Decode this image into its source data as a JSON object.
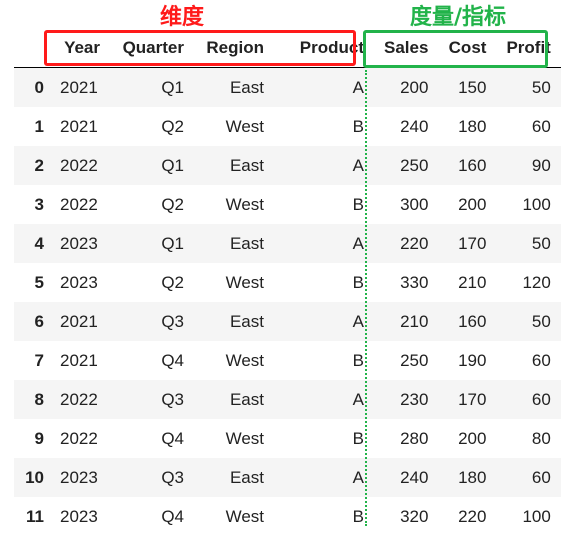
{
  "annotations": {
    "dimensions_label": "维度",
    "measures_label": "度量/指标",
    "dimensions_color": "#ff1a1a",
    "measures_color": "#22b34a"
  },
  "table": {
    "columns": [
      "Year",
      "Quarter",
      "Region",
      "Product",
      "Sales",
      "Cost",
      "Profit"
    ],
    "rows": [
      {
        "index": "0",
        "cells": [
          "2021",
          "Q1",
          "East",
          "A",
          "200",
          "150",
          "50"
        ]
      },
      {
        "index": "1",
        "cells": [
          "2021",
          "Q2",
          "West",
          "B",
          "240",
          "180",
          "60"
        ]
      },
      {
        "index": "2",
        "cells": [
          "2022",
          "Q1",
          "East",
          "A",
          "250",
          "160",
          "90"
        ]
      },
      {
        "index": "3",
        "cells": [
          "2022",
          "Q2",
          "West",
          "B",
          "300",
          "200",
          "100"
        ]
      },
      {
        "index": "4",
        "cells": [
          "2023",
          "Q1",
          "East",
          "A",
          "220",
          "170",
          "50"
        ]
      },
      {
        "index": "5",
        "cells": [
          "2023",
          "Q2",
          "West",
          "B",
          "330",
          "210",
          "120"
        ]
      },
      {
        "index": "6",
        "cells": [
          "2021",
          "Q3",
          "East",
          "A",
          "210",
          "160",
          "50"
        ]
      },
      {
        "index": "7",
        "cells": [
          "2021",
          "Q4",
          "West",
          "B",
          "250",
          "190",
          "60"
        ]
      },
      {
        "index": "8",
        "cells": [
          "2022",
          "Q3",
          "East",
          "A",
          "230",
          "170",
          "60"
        ]
      },
      {
        "index": "9",
        "cells": [
          "2022",
          "Q4",
          "West",
          "B",
          "280",
          "200",
          "80"
        ]
      },
      {
        "index": "10",
        "cells": [
          "2023",
          "Q3",
          "East",
          "A",
          "240",
          "180",
          "60"
        ]
      },
      {
        "index": "11",
        "cells": [
          "2023",
          "Q4",
          "West",
          "B",
          "320",
          "220",
          "100"
        ]
      }
    ]
  }
}
